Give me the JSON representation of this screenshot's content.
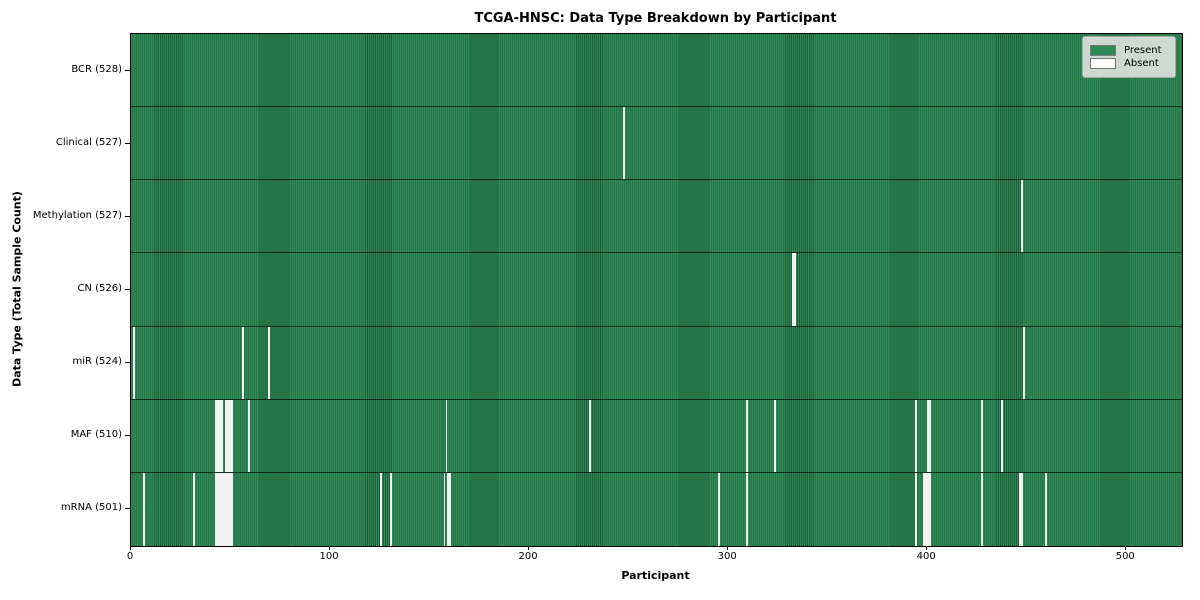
{
  "chart_data": {
    "type": "heatmap",
    "title": "TCGA-HNSC: Data Type Breakdown by Participant",
    "xlabel": "Participant",
    "ylabel": "Data Type (Total Sample Count)",
    "xlim": [
      0,
      528
    ],
    "x_ticks": [
      0,
      100,
      200,
      300,
      400,
      500
    ],
    "grid": false,
    "legend": {
      "position": "upper right",
      "entries": [
        {
          "label": "Present",
          "color": "#2e8b57"
        },
        {
          "label": "Absent",
          "color": "#ffffff"
        }
      ]
    },
    "colors": {
      "present_fill": "#2e8b57",
      "present_edge": "#215c3b",
      "absent_fill": "#fbfbfb",
      "row_separator": "#1a1a1a"
    },
    "rows": [
      {
        "label": "BCR (528)",
        "data_type": "BCR",
        "present_count": 528,
        "absent_participants": []
      },
      {
        "label": "Clinical (527)",
        "data_type": "Clinical",
        "present_count": 527,
        "absent_participants": [
          247
        ]
      },
      {
        "label": "Methylation (527)",
        "data_type": "Methylation",
        "present_count": 527,
        "absent_participants": [
          447
        ]
      },
      {
        "label": "CN (526)",
        "data_type": "CN",
        "present_count": 526,
        "absent_participants": [
          332,
          333
        ]
      },
      {
        "label": "miR (524)",
        "data_type": "miR",
        "present_count": 524,
        "absent_participants": [
          1,
          56,
          69,
          448
        ]
      },
      {
        "label": "MAF (510)",
        "data_type": "MAF",
        "present_count": 510,
        "absent_participants": [
          42,
          43,
          44,
          45,
          47,
          48,
          49,
          50,
          59,
          158,
          230,
          309,
          323,
          394,
          400,
          401,
          427,
          437
        ]
      },
      {
        "label": "mRNA (501)",
        "data_type": "mRNA",
        "present_count": 501,
        "absent_participants": [
          6,
          31,
          42,
          43,
          44,
          45,
          46,
          47,
          48,
          49,
          50,
          125,
          130,
          157,
          159,
          160,
          295,
          309,
          394,
          398,
          399,
          400,
          401,
          427,
          446,
          447,
          459
        ]
      }
    ]
  }
}
